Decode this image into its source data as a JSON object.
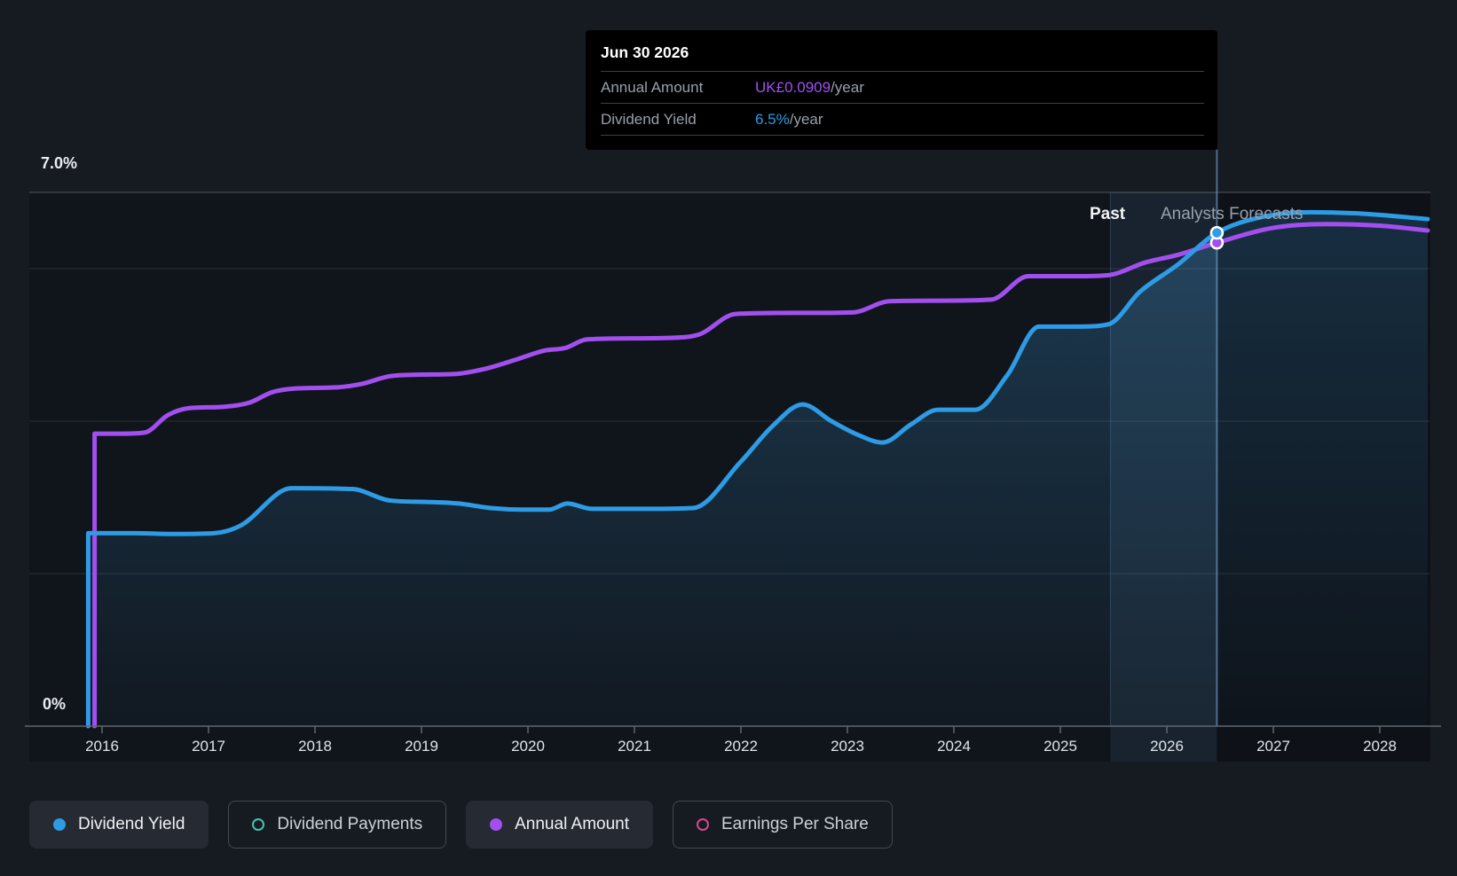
{
  "tooltip": {
    "title": "Jun 30 2026",
    "rows": [
      {
        "label": "Annual Amount",
        "value": "UK£0.0909",
        "unit": "/year",
        "color": "#a34ff0"
      },
      {
        "label": "Dividend Yield",
        "value": "6.5%",
        "unit": "/year",
        "color": "#2e9be5"
      }
    ]
  },
  "axis_labels": {
    "y_max": "7.0%",
    "y_min": "0%"
  },
  "zones": {
    "past_label": "Past",
    "forecast_label": "Analysts Forecasts"
  },
  "legend": [
    {
      "label": "Dividend Yield",
      "color": "#2e9be5",
      "style": "filled",
      "active": true
    },
    {
      "label": "Dividend Payments",
      "color": "#46c2ae",
      "style": "ring",
      "active": false
    },
    {
      "label": "Annual Amount",
      "color": "#a34ff0",
      "style": "filled",
      "active": true
    },
    {
      "label": "Earnings Per Share",
      "color": "#d4498f",
      "style": "ring",
      "active": false
    }
  ],
  "colors": {
    "dividend_yield": "#2e9be5",
    "annual_amount": "#a34ff0",
    "plot_bg": "#10151c",
    "page_bg": "#161b22",
    "grid_major": "rgba(255,255,255,0.22)",
    "grid_minor": "rgba(255,255,255,0.09)",
    "axis": "#60666e",
    "cursor": "rgba(125,178,230,0.55)",
    "band_fill": "rgba(110,166,212,0.10)",
    "after_cursor_shade": "rgba(6,8,12,0.25)",
    "fill_top": "rgba(52,130,184,0.35)",
    "fill_bottom": "rgba(52,130,184,0.03)"
  },
  "chart_data": {
    "type": "line",
    "x_domain": [
      2015.8,
      2028.5
    ],
    "x_tick_years": [
      2016,
      2017,
      2018,
      2019,
      2020,
      2021,
      2022,
      2023,
      2024,
      2025,
      2026,
      2027,
      2028
    ],
    "y_axis": {
      "min_pct": 0,
      "max_pct": 7,
      "max_label": "7.0%",
      "min_label": "0%",
      "gridlines_pct": [
        7,
        6,
        4,
        2
      ]
    },
    "forecast": {
      "divider_year": 2025.47,
      "cursor_year": 2026.47,
      "cursor_date_label": "Jun 30 2026"
    },
    "series": [
      {
        "name": "Dividend Yield",
        "unit": "%",
        "color": "#2e9be5",
        "starts_at_zero": true,
        "display_scale": 1,
        "area_fill": true,
        "points": [
          [
            2015.87,
            2.53
          ],
          [
            2016.3,
            2.53
          ],
          [
            2016.7,
            2.52
          ],
          [
            2017.05,
            2.53
          ],
          [
            2017.3,
            2.63
          ],
          [
            2017.78,
            3.12
          ],
          [
            2018.35,
            3.11
          ],
          [
            2018.7,
            2.96
          ],
          [
            2019.05,
            2.94
          ],
          [
            2019.35,
            2.92
          ],
          [
            2019.65,
            2.86
          ],
          [
            2019.95,
            2.84
          ],
          [
            2020.2,
            2.84
          ],
          [
            2020.37,
            2.92
          ],
          [
            2020.6,
            2.85
          ],
          [
            2021.1,
            2.85
          ],
          [
            2021.55,
            2.86
          ],
          [
            2022.0,
            3.47
          ],
          [
            2022.3,
            3.94
          ],
          [
            2022.58,
            4.22
          ],
          [
            2022.85,
            4.0
          ],
          [
            2023.1,
            3.82
          ],
          [
            2023.33,
            3.72
          ],
          [
            2023.6,
            3.96
          ],
          [
            2023.85,
            4.15
          ],
          [
            2024.2,
            4.15
          ],
          [
            2024.5,
            4.6
          ],
          [
            2024.8,
            5.24
          ],
          [
            2025.15,
            5.24
          ],
          [
            2025.45,
            5.27
          ],
          [
            2025.75,
            5.7
          ],
          [
            2026.1,
            6.05
          ],
          [
            2026.47,
            6.47
          ],
          [
            2026.9,
            6.68
          ],
          [
            2027.35,
            6.74
          ],
          [
            2027.85,
            6.72
          ],
          [
            2028.45,
            6.65
          ]
        ]
      },
      {
        "name": "Annual Amount",
        "unit": "GBP/year",
        "color": "#a34ff0",
        "starts_at_zero": true,
        "display_scale": 69.75,
        "area_fill": false,
        "points": [
          [
            2015.93,
            0.055
          ],
          [
            2016.2,
            0.055
          ],
          [
            2016.4,
            0.0552
          ],
          [
            2016.62,
            0.0585
          ],
          [
            2016.82,
            0.0598
          ],
          [
            2017.1,
            0.06
          ],
          [
            2017.38,
            0.0608
          ],
          [
            2017.6,
            0.0628
          ],
          [
            2017.82,
            0.0635
          ],
          [
            2018.2,
            0.0637
          ],
          [
            2018.45,
            0.0644
          ],
          [
            2018.7,
            0.0658
          ],
          [
            2019.0,
            0.0661
          ],
          [
            2019.3,
            0.0662
          ],
          [
            2019.6,
            0.0672
          ],
          [
            2019.9,
            0.069
          ],
          [
            2020.15,
            0.0706
          ],
          [
            2020.35,
            0.0711
          ],
          [
            2020.55,
            0.0727
          ],
          [
            2020.9,
            0.0729
          ],
          [
            2021.3,
            0.073
          ],
          [
            2021.6,
            0.0736
          ],
          [
            2021.95,
            0.0775
          ],
          [
            2022.5,
            0.0777
          ],
          [
            2023.05,
            0.0778
          ],
          [
            2023.4,
            0.0799
          ],
          [
            2023.9,
            0.08
          ],
          [
            2024.35,
            0.0802
          ],
          [
            2024.7,
            0.0846
          ],
          [
            2025.15,
            0.0846
          ],
          [
            2025.45,
            0.0848
          ],
          [
            2025.8,
            0.0872
          ],
          [
            2026.1,
            0.0886
          ],
          [
            2026.47,
            0.0909
          ],
          [
            2027.0,
            0.0937
          ],
          [
            2027.5,
            0.0944
          ],
          [
            2028.0,
            0.0941
          ],
          [
            2028.45,
            0.0932
          ]
        ]
      }
    ],
    "markers": [
      {
        "series": "Dividend Yield",
        "year": 2026.47,
        "value": 6.47,
        "color": "#2e9be5"
      },
      {
        "series": "Annual Amount",
        "year": 2026.47,
        "value": 0.0909,
        "color": "#a34ff0"
      }
    ]
  }
}
